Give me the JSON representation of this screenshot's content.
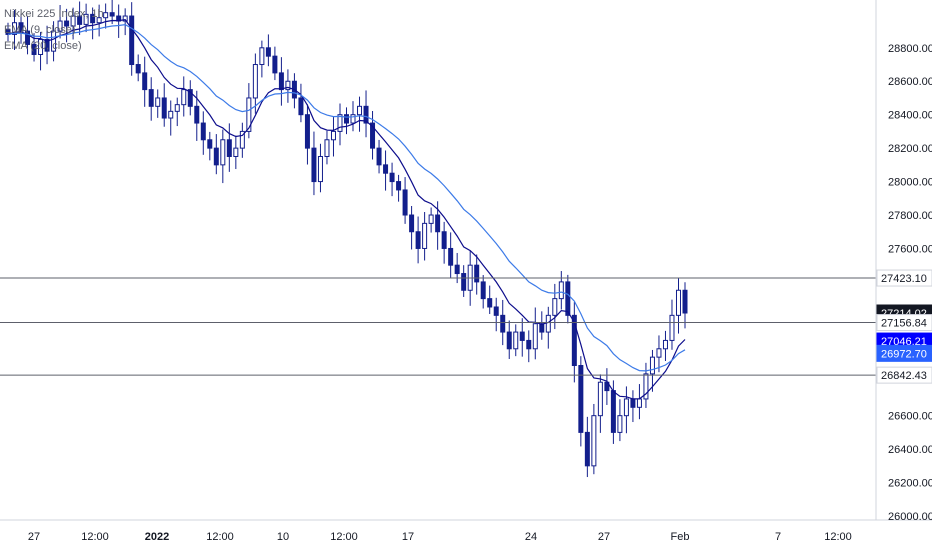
{
  "chart_data": {
    "type": "candlestick",
    "title": "Nikkei 225 Index, 1h",
    "series_labels": [
      "EMA (9, close)",
      "EMA (20, close)"
    ],
    "y_ticks": [
      "28800.00",
      "28600.00",
      "28400.00",
      "28200.00",
      "28000.00",
      "27800.00",
      "27600.00",
      "26600.00",
      "26400.00",
      "26200.00",
      "26000.00"
    ],
    "y_range": [
      26000,
      29050
    ],
    "x_ticks": [
      "27",
      "12:00",
      "2022",
      "12:00",
      "10",
      "12:00",
      "17",
      "24",
      "27",
      "Feb",
      "7",
      "12:00"
    ],
    "horizontal_levels": [
      27423.1,
      27156.84,
      26842.43
    ],
    "price_labels": [
      {
        "value": 27423.1,
        "text": "27423.10",
        "bg": "#ffffff",
        "fg": "#131722"
      },
      {
        "value": 27214.02,
        "text": "27214.02",
        "bg": "#131722",
        "fg": "#ffffff"
      },
      {
        "value": 27156.84,
        "text": "27156.84",
        "bg": "#ffffff",
        "fg": "#131722"
      },
      {
        "value": 27046.21,
        "text": "27046.21",
        "bg": "#0000ff",
        "fg": "#ffffff"
      },
      {
        "value": 26972.7,
        "text": "26972.70",
        "bg": "#2962ff",
        "fg": "#ffffff"
      },
      {
        "value": 26842.43,
        "text": "26842.43",
        "bg": "#ffffff",
        "fg": "#131722"
      }
    ],
    "closes": [
      28880,
      28950,
      28900,
      28820,
      28760,
      28850,
      28780,
      28900,
      28960,
      28930,
      28990,
      28940,
      29000,
      28950,
      28980,
      29010,
      28990,
      28960,
      28990,
      28700,
      28650,
      28550,
      28450,
      28500,
      28380,
      28420,
      28460,
      28550,
      28450,
      28350,
      28250,
      28200,
      28100,
      28250,
      28150,
      28200,
      28300,
      28500,
      28700,
      28800,
      28750,
      28650,
      28550,
      28600,
      28500,
      28400,
      28200,
      28000,
      28150,
      28250,
      28300,
      28400,
      28350,
      28400,
      28450,
      28350,
      28200,
      28100,
      28050,
      28000,
      27950,
      27800,
      27700,
      27600,
      27750,
      27800,
      27700,
      27600,
      27500,
      27450,
      27350,
      27500,
      27400,
      27300,
      27250,
      27200,
      27100,
      27000,
      27100,
      27050,
      27000,
      27150,
      27100,
      27200,
      27300,
      27400,
      27200,
      26900,
      26500,
      26300,
      26600,
      26800,
      26750,
      26500,
      26600,
      26700,
      26650,
      26700,
      26850,
      26950,
      27000,
      27050,
      27200,
      27350,
      27214
    ],
    "colors": {
      "candle": "#131f8c",
      "ema9": "#0d0d8c",
      "ema20": "#3d7be8",
      "level_line": "#5d606b",
      "axis_text": "#131722"
    }
  }
}
